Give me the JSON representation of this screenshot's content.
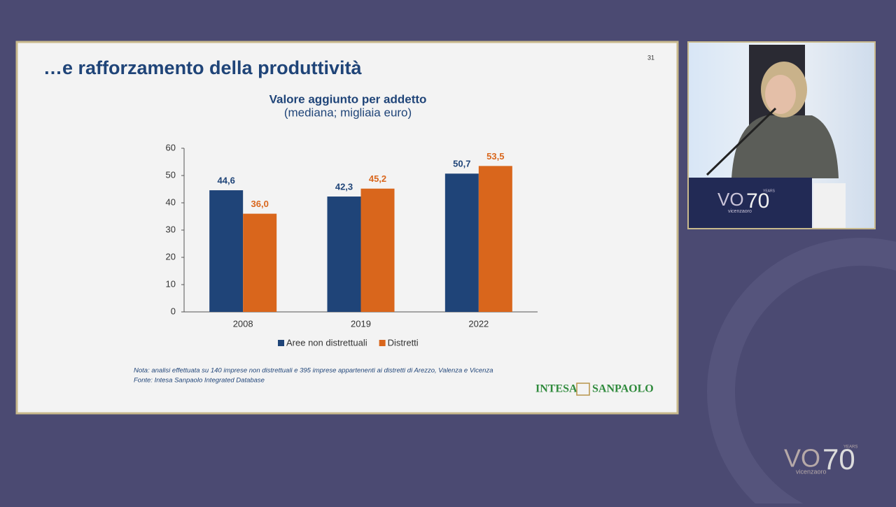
{
  "slide": {
    "title": "…e rafforzamento della produttività",
    "page_number": "31",
    "note": "Nota: analisi effettuata su 140 imprese non distrettuali e 395 imprese appartenenti ai distretti di Arezzo, Valenza e Vicenza",
    "source": "Fonte: Intesa Sanpaolo Integrated Database",
    "logo": [
      "INTESA",
      "SANPAOLO"
    ]
  },
  "branding": {
    "podium_logo": [
      "VO",
      "70",
      "YEARS",
      "vicenzaoro"
    ],
    "corner_logo": [
      "VO",
      "70",
      "YEARS",
      "vicenzaoro"
    ]
  },
  "chart_data": {
    "type": "bar",
    "title": "Valore aggiunto per addetto",
    "subtitle": "(mediana; migliaia euro)",
    "categories": [
      "2008",
      "2019",
      "2022"
    ],
    "series": [
      {
        "name": "Aree non distrettuali",
        "color": "#1f4478",
        "values": [
          44.6,
          42.3,
          50.7
        ],
        "value_labels": [
          "44,6",
          "42,3",
          "50,7"
        ]
      },
      {
        "name": "Distretti",
        "color": "#d9661c",
        "values": [
          36.0,
          45.2,
          53.5
        ],
        "value_labels": [
          "36,0",
          "45,2",
          "53,5"
        ]
      }
    ],
    "ylim": [
      0,
      60
    ],
    "yticks": [
      0,
      10,
      20,
      30,
      40,
      50,
      60
    ],
    "grid": false,
    "legend": "bottom"
  }
}
